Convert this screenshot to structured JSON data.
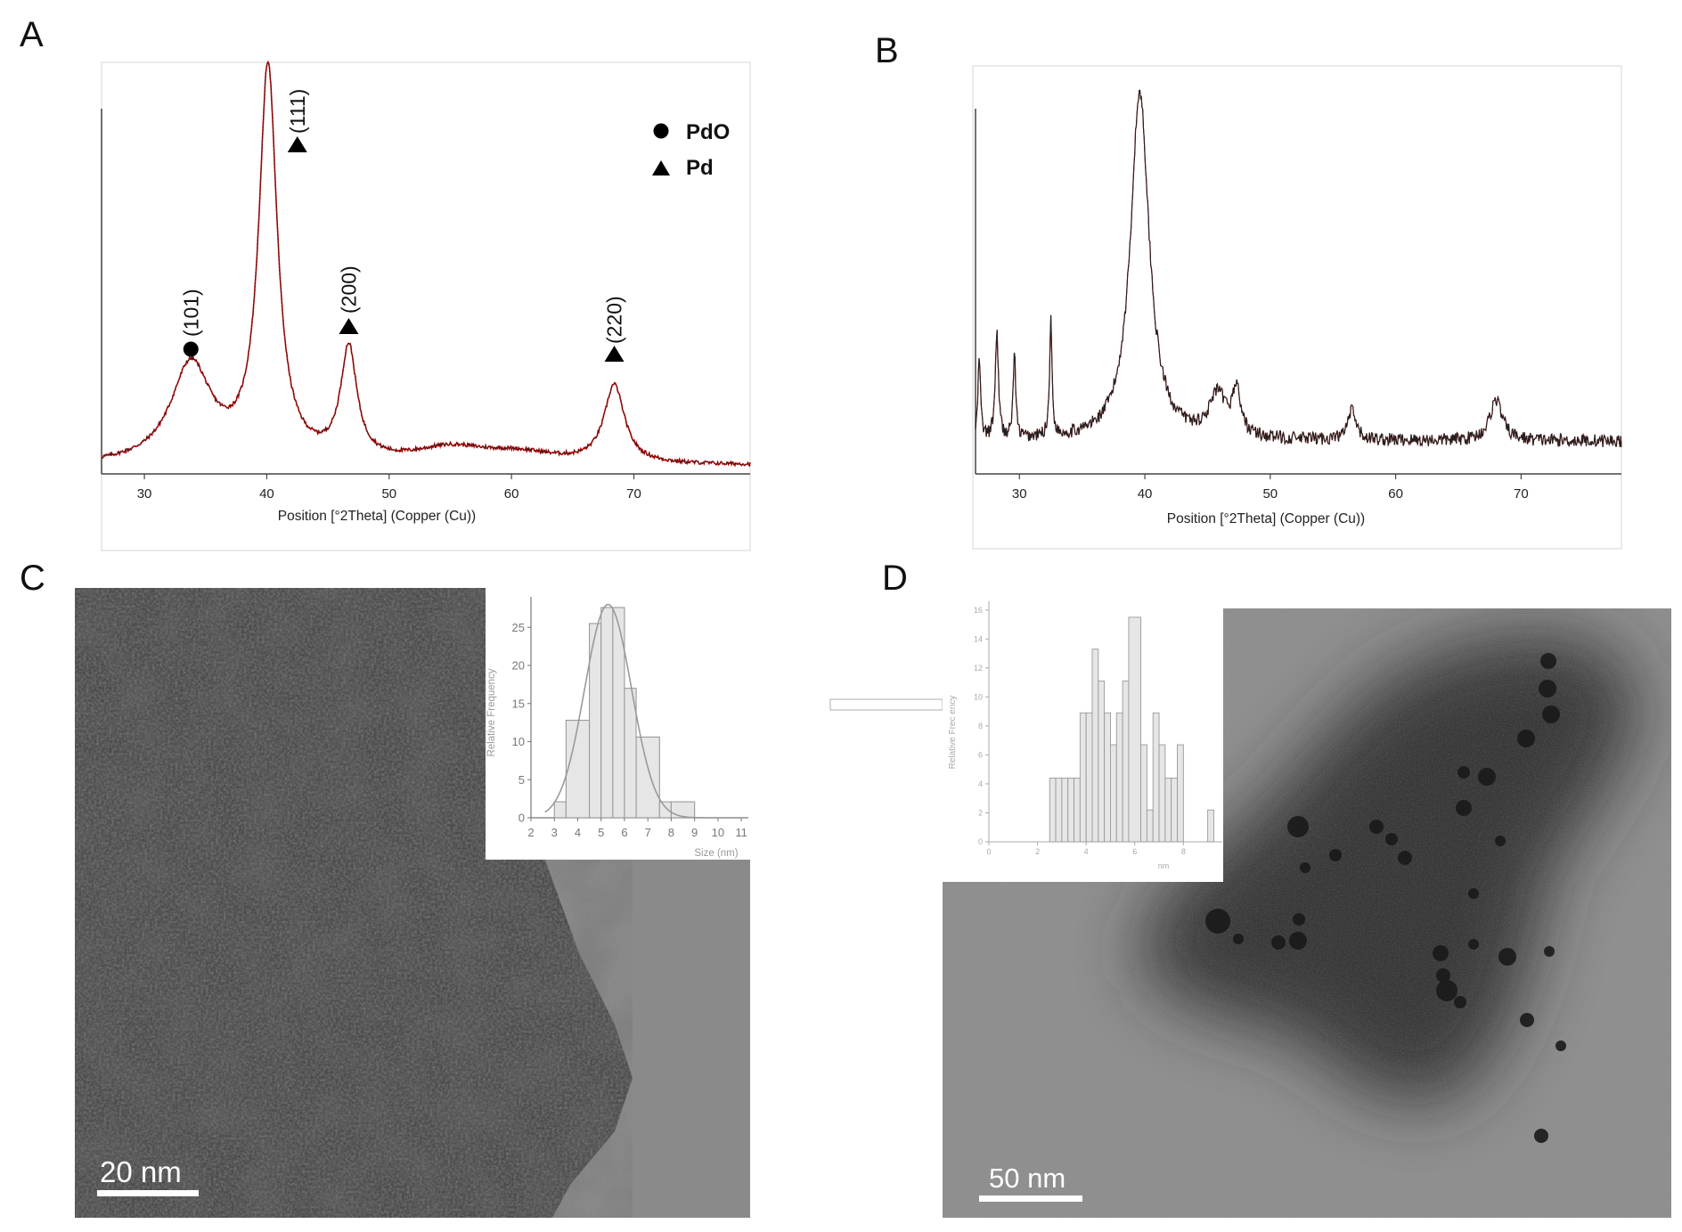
{
  "panels": {
    "a": "A",
    "b": "B",
    "c": "C",
    "d": "D"
  },
  "colors": {
    "pattern_line": "#c00000",
    "pattern_fit": "#222222",
    "axis": "#333333",
    "hist_bar": "#e6e6e6",
    "hist_edge": "#9a9a9a"
  },
  "chart_data": [
    {
      "id": "xrd-a",
      "type": "line",
      "title": "",
      "xlabel": "Position [°2Theta] (Copper (Cu))",
      "ylabel": "",
      "xlim": [
        26.5,
        79.5
      ],
      "ylim": [
        0,
        100
      ],
      "x_ticks": [
        30,
        40,
        50,
        60,
        70
      ],
      "peaks": [
        {
          "x": 33.8,
          "height": 24,
          "width": 2.0
        },
        {
          "x": 40.1,
          "height": 96,
          "width": 0.9
        },
        {
          "x": 46.7,
          "height": 27,
          "width": 0.8
        },
        {
          "x": 55.0,
          "height": 3.5,
          "width": 3.5
        },
        {
          "x": 60.5,
          "height": 2.5,
          "width": 4.0
        },
        {
          "x": 68.4,
          "height": 19,
          "width": 1.0
        }
      ],
      "baseline": 2,
      "legend": [
        {
          "marker": "circle",
          "label": "PdO"
        },
        {
          "marker": "triangle",
          "label": "Pd"
        }
      ],
      "annotations": [
        {
          "label": "(101)",
          "marker": "circle",
          "x": 33.8
        },
        {
          "label": "(111)",
          "marker": "triangle",
          "x": 42.5
        },
        {
          "label": "(200)",
          "marker": "triangle",
          "x": 46.7
        },
        {
          "label": "(220)",
          "marker": "triangle",
          "x": 68.4
        }
      ],
      "legend_position": "top-right"
    },
    {
      "id": "xrd-b",
      "type": "line",
      "title": "",
      "xlabel": "Position [°2Theta] (Copper (Cu))",
      "ylabel": "",
      "xlim": [
        26.5,
        78
      ],
      "ylim": [
        0,
        100
      ],
      "x_ticks": [
        30,
        40,
        50,
        60,
        70
      ],
      "peaks": [
        {
          "x": 26.8,
          "height": 20,
          "width": 0.12
        },
        {
          "x": 28.2,
          "height": 26,
          "width": 0.15
        },
        {
          "x": 29.6,
          "height": 21,
          "width": 0.12
        },
        {
          "x": 32.5,
          "height": 28,
          "width": 0.12
        },
        {
          "x": 39.6,
          "height": 85,
          "width": 0.9
        },
        {
          "x": 45.8,
          "height": 10,
          "width": 0.8
        },
        {
          "x": 47.3,
          "height": 11,
          "width": 0.4
        },
        {
          "x": 56.5,
          "height": 7,
          "width": 0.4
        },
        {
          "x": 68.0,
          "height": 10,
          "width": 0.6
        }
      ],
      "baseline": 8,
      "legend_position": "none"
    },
    {
      "id": "hist-c",
      "type": "bar",
      "title": "",
      "xlabel": "Size (nm)",
      "ylabel": "Relative Frequency",
      "x_ticks": [
        2,
        3,
        4,
        5,
        6,
        7,
        8,
        9,
        10,
        11
      ],
      "y_ticks": [
        0,
        5,
        10,
        15,
        20,
        25
      ],
      "xlim": [
        2,
        11.3
      ],
      "ylim": [
        0,
        29
      ],
      "bins": [
        {
          "start": 3.0,
          "end": 3.5,
          "value": 2.1
        },
        {
          "start": 3.5,
          "end": 4.5,
          "value": 12.8
        },
        {
          "start": 4.5,
          "end": 5.0,
          "value": 25.5
        },
        {
          "start": 5.0,
          "end": 5.5,
          "value": 27.6
        },
        {
          "start": 5.5,
          "end": 6.0,
          "value": 27.6
        },
        {
          "start": 6.0,
          "end": 6.5,
          "value": 17.0
        },
        {
          "start": 6.5,
          "end": 7.5,
          "value": 10.6
        },
        {
          "start": 7.5,
          "end": 8.0,
          "value": 2.1
        },
        {
          "start": 8.0,
          "end": 9.0,
          "value": 2.1
        }
      ],
      "fit": {
        "type": "gaussian",
        "mean": 5.3,
        "sd": 1.0,
        "peak": 28
      }
    },
    {
      "id": "hist-d",
      "type": "bar",
      "title": "",
      "xlabel": "nm",
      "ylabel": "Relative Frec  ency",
      "x_ticks": [
        0,
        2,
        4,
        6,
        8
      ],
      "y_ticks": [
        0,
        2,
        4,
        6,
        8,
        10,
        12,
        14,
        16
      ],
      "xlim": [
        0,
        9.6
      ],
      "ylim": [
        0,
        16.6
      ],
      "bins": [
        {
          "start": 2.5,
          "end": 2.75,
          "value": 4.4
        },
        {
          "start": 2.75,
          "end": 3.0,
          "value": 4.4
        },
        {
          "start": 3.0,
          "end": 3.25,
          "value": 4.4
        },
        {
          "start": 3.25,
          "end": 3.5,
          "value": 4.4
        },
        {
          "start": 3.5,
          "end": 3.75,
          "value": 4.4
        },
        {
          "start": 3.75,
          "end": 4.0,
          "value": 8.9
        },
        {
          "start": 4.0,
          "end": 4.25,
          "value": 8.9
        },
        {
          "start": 4.25,
          "end": 4.5,
          "value": 13.3
        },
        {
          "start": 4.5,
          "end": 4.75,
          "value": 11.1
        },
        {
          "start": 4.75,
          "end": 5.0,
          "value": 8.9
        },
        {
          "start": 5.0,
          "end": 5.25,
          "value": 6.7
        },
        {
          "start": 5.25,
          "end": 5.5,
          "value": 8.9
        },
        {
          "start": 5.5,
          "end": 5.75,
          "value": 11.1
        },
        {
          "start": 5.75,
          "end": 6.25,
          "value": 15.5
        },
        {
          "start": 6.25,
          "end": 6.5,
          "value": 6.7
        },
        {
          "start": 6.5,
          "end": 6.75,
          "value": 2.2
        },
        {
          "start": 6.75,
          "end": 7.0,
          "value": 8.9
        },
        {
          "start": 7.0,
          "end": 7.25,
          "value": 6.7
        },
        {
          "start": 7.25,
          "end": 7.5,
          "value": 4.4
        },
        {
          "start": 7.5,
          "end": 7.75,
          "value": 4.4
        },
        {
          "start": 7.75,
          "end": 8.0,
          "value": 6.7
        },
        {
          "start": 9.0,
          "end": 9.25,
          "value": 2.2
        }
      ]
    }
  ],
  "micrographs": [
    {
      "id": "tem-c",
      "scale_bar": "20 nm"
    },
    {
      "id": "tem-d",
      "scale_bar": "50 nm"
    }
  ]
}
